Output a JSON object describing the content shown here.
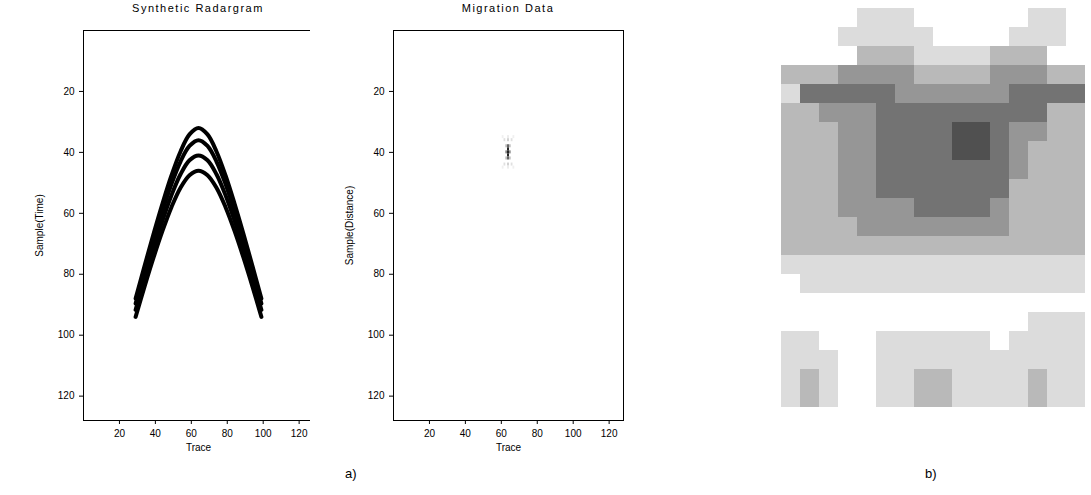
{
  "chart_data": [
    {
      "type": "line",
      "panel": "a)",
      "title": "Synthetic Radargram",
      "x_label": "Trace",
      "y_label": "Sample(Time)",
      "xlim": [
        0,
        128
      ],
      "ylim": [
        128,
        0
      ],
      "xticks": [
        20,
        40,
        60,
        80,
        100,
        120
      ],
      "yticks": [
        20,
        40,
        60,
        80,
        100,
        120
      ],
      "color": "#000000",
      "x": [
        29,
        34,
        39,
        44,
        49,
        54,
        59,
        64,
        69,
        74,
        79,
        84,
        89,
        94,
        99
      ],
      "series": [
        {
          "values": [
            88.0,
            77.2,
            66.7,
            56.7,
            47.5,
            39.7,
            34.1,
            32,
            34.1,
            39.7,
            47.5,
            56.7,
            66.7,
            77.2,
            88.0
          ]
        },
        {
          "values": [
            89.6,
            79.0,
            68.8,
            59.1,
            50.3,
            43.0,
            37.9,
            36,
            37.9,
            43.0,
            50.3,
            59.1,
            68.8,
            79.0,
            89.6
          ]
        },
        {
          "values": [
            91.7,
            81.4,
            71.5,
            62.3,
            54.0,
            47.2,
            42.6,
            41,
            42.6,
            47.2,
            54.0,
            62.3,
            71.5,
            81.4,
            91.7
          ]
        },
        {
          "values": [
            94.0,
            84.0,
            74.5,
            65.7,
            57.9,
            51.6,
            47.5,
            46,
            47.5,
            51.6,
            57.9,
            65.7,
            74.5,
            84.0,
            94.0
          ]
        }
      ]
    },
    {
      "type": "heatmap",
      "panel": "a)",
      "title": "Migration Data",
      "x_label": "Trace",
      "y_label": "Sample(Distance)",
      "xlim": [
        0,
        128
      ],
      "ylim": [
        128,
        0
      ],
      "xticks": [
        20,
        40,
        60,
        80,
        100,
        120
      ],
      "yticks": [
        20,
        40,
        60,
        80,
        100,
        120
      ],
      "color": "#000000",
      "zlim": [
        0,
        1
      ],
      "cells": [
        [
          64,
          40,
          1
        ],
        [
          64,
          39,
          0.95
        ],
        [
          64,
          41,
          0.95
        ],
        [
          64,
          38,
          0.7
        ],
        [
          64,
          42,
          0.7
        ],
        [
          63,
          40,
          0.45
        ],
        [
          65,
          40,
          0.45
        ],
        [
          63,
          38,
          0.25
        ],
        [
          65,
          38,
          0.25
        ],
        [
          63,
          42,
          0.25
        ],
        [
          65,
          42,
          0.25
        ],
        [
          62,
          36,
          0.12
        ],
        [
          66,
          36,
          0.12
        ],
        [
          62,
          44,
          0.12
        ],
        [
          66,
          44,
          0.12
        ],
        [
          61,
          35,
          0.06
        ],
        [
          67,
          35,
          0.06
        ],
        [
          61,
          45,
          0.06
        ],
        [
          67,
          45,
          0.06
        ],
        [
          64,
          36,
          0.2
        ],
        [
          64,
          44,
          0.2
        ],
        [
          64,
          35,
          0.08
        ],
        [
          64,
          45,
          0.08
        ]
      ]
    },
    {
      "type": "heatmap",
      "panel": "b)",
      "tick_labels": false,
      "color": "#505050",
      "zlim": [
        0,
        5
      ],
      "z": [
        [
          0,
          0,
          0,
          0,
          1,
          1,
          1,
          0,
          0,
          0,
          0,
          0,
          0,
          1,
          1,
          0
        ],
        [
          0,
          0,
          0,
          1,
          1,
          1,
          1,
          1,
          0,
          0,
          0,
          0,
          1,
          1,
          1,
          0
        ],
        [
          0,
          0,
          0,
          0,
          2,
          2,
          2,
          1,
          1,
          1,
          1,
          2,
          2,
          2,
          0,
          0
        ],
        [
          2,
          2,
          2,
          3,
          3,
          3,
          3,
          2,
          2,
          2,
          2,
          3,
          3,
          3,
          2,
          2
        ],
        [
          1,
          4,
          4,
          4,
          4,
          4,
          3,
          3,
          3,
          3,
          3,
          3,
          4,
          4,
          4,
          4
        ],
        [
          2,
          2,
          3,
          3,
          3,
          4,
          4,
          4,
          4,
          4,
          4,
          4,
          4,
          4,
          2,
          2
        ],
        [
          2,
          2,
          2,
          3,
          3,
          4,
          4,
          4,
          4,
          5,
          5,
          4,
          3,
          3,
          2,
          2
        ],
        [
          2,
          2,
          2,
          3,
          3,
          4,
          4,
          4,
          4,
          5,
          5,
          4,
          3,
          2,
          2,
          2
        ],
        [
          2,
          2,
          2,
          3,
          3,
          4,
          4,
          4,
          4,
          4,
          4,
          4,
          3,
          2,
          2,
          2
        ],
        [
          2,
          2,
          2,
          3,
          3,
          4,
          4,
          4,
          4,
          4,
          4,
          4,
          2,
          2,
          2,
          2
        ],
        [
          2,
          2,
          2,
          3,
          3,
          3,
          3,
          4,
          4,
          4,
          4,
          3,
          2,
          2,
          2,
          2
        ],
        [
          2,
          2,
          2,
          2,
          3,
          3,
          3,
          3,
          3,
          3,
          3,
          3,
          2,
          2,
          2,
          2
        ],
        [
          2,
          2,
          2,
          2,
          2,
          2,
          2,
          2,
          2,
          2,
          2,
          2,
          2,
          2,
          2,
          2
        ],
        [
          1,
          1,
          1,
          1,
          1,
          1,
          1,
          1,
          1,
          1,
          1,
          1,
          1,
          1,
          1,
          1
        ],
        [
          0,
          1,
          1,
          1,
          1,
          1,
          1,
          1,
          1,
          1,
          1,
          1,
          1,
          1,
          1,
          1
        ],
        [
          0,
          0,
          0,
          0,
          0,
          0,
          0,
          0,
          0,
          0,
          0,
          0,
          0,
          0,
          0,
          0
        ],
        [
          0,
          0,
          0,
          0,
          0,
          0,
          0,
          0,
          0,
          0,
          0,
          0,
          0,
          1,
          1,
          1
        ],
        [
          1,
          1,
          0,
          0,
          0,
          1,
          1,
          1,
          1,
          1,
          1,
          0,
          1,
          1,
          1,
          1
        ],
        [
          1,
          1,
          1,
          0,
          0,
          1,
          1,
          1,
          1,
          1,
          1,
          1,
          1,
          1,
          1,
          1
        ],
        [
          1,
          2,
          1,
          0,
          0,
          1,
          1,
          2,
          2,
          1,
          1,
          1,
          1,
          2,
          1,
          1
        ],
        [
          1,
          2,
          1,
          0,
          0,
          1,
          1,
          2,
          2,
          1,
          1,
          1,
          1,
          2,
          1,
          1
        ]
      ]
    }
  ]
}
